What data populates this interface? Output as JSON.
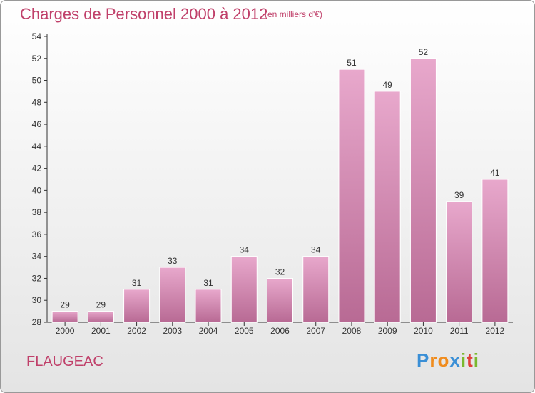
{
  "title": "Charges de Personnel 2000 à 2012",
  "subtitle": "(en milliers d'€)",
  "commune": "FLAUGEAC",
  "logo": {
    "letters": [
      "P",
      "r",
      "o",
      "x",
      "i",
      "t",
      "i"
    ],
    "colors": [
      "#3a8fd6",
      "#f08c1e",
      "#f08c1e",
      "#3a8fd6",
      "#7ab82e",
      "#e0403a",
      "#7ab82e"
    ]
  },
  "colors": {
    "title": "#c0406a",
    "bar_top": "#e8a8cc",
    "bar_bottom": "#b86a94",
    "axis": "#333333"
  },
  "chart_data": {
    "type": "bar",
    "title": "Charges de Personnel 2000 à 2012",
    "subtitle": "(en milliers d'€)",
    "categories": [
      "2000",
      "2001",
      "2002",
      "2003",
      "2004",
      "2005",
      "2006",
      "2007",
      "2008",
      "2009",
      "2010",
      "2011",
      "2012"
    ],
    "values": [
      29,
      29,
      31,
      33,
      31,
      34,
      32,
      34,
      51,
      49,
      52,
      39,
      41
    ],
    "ylim": [
      28,
      54
    ],
    "yticks": [
      28,
      30,
      32,
      34,
      36,
      38,
      40,
      42,
      44,
      46,
      48,
      50,
      52,
      54
    ],
    "xlabel": "",
    "ylabel": "",
    "grid": false,
    "legend": "none"
  }
}
